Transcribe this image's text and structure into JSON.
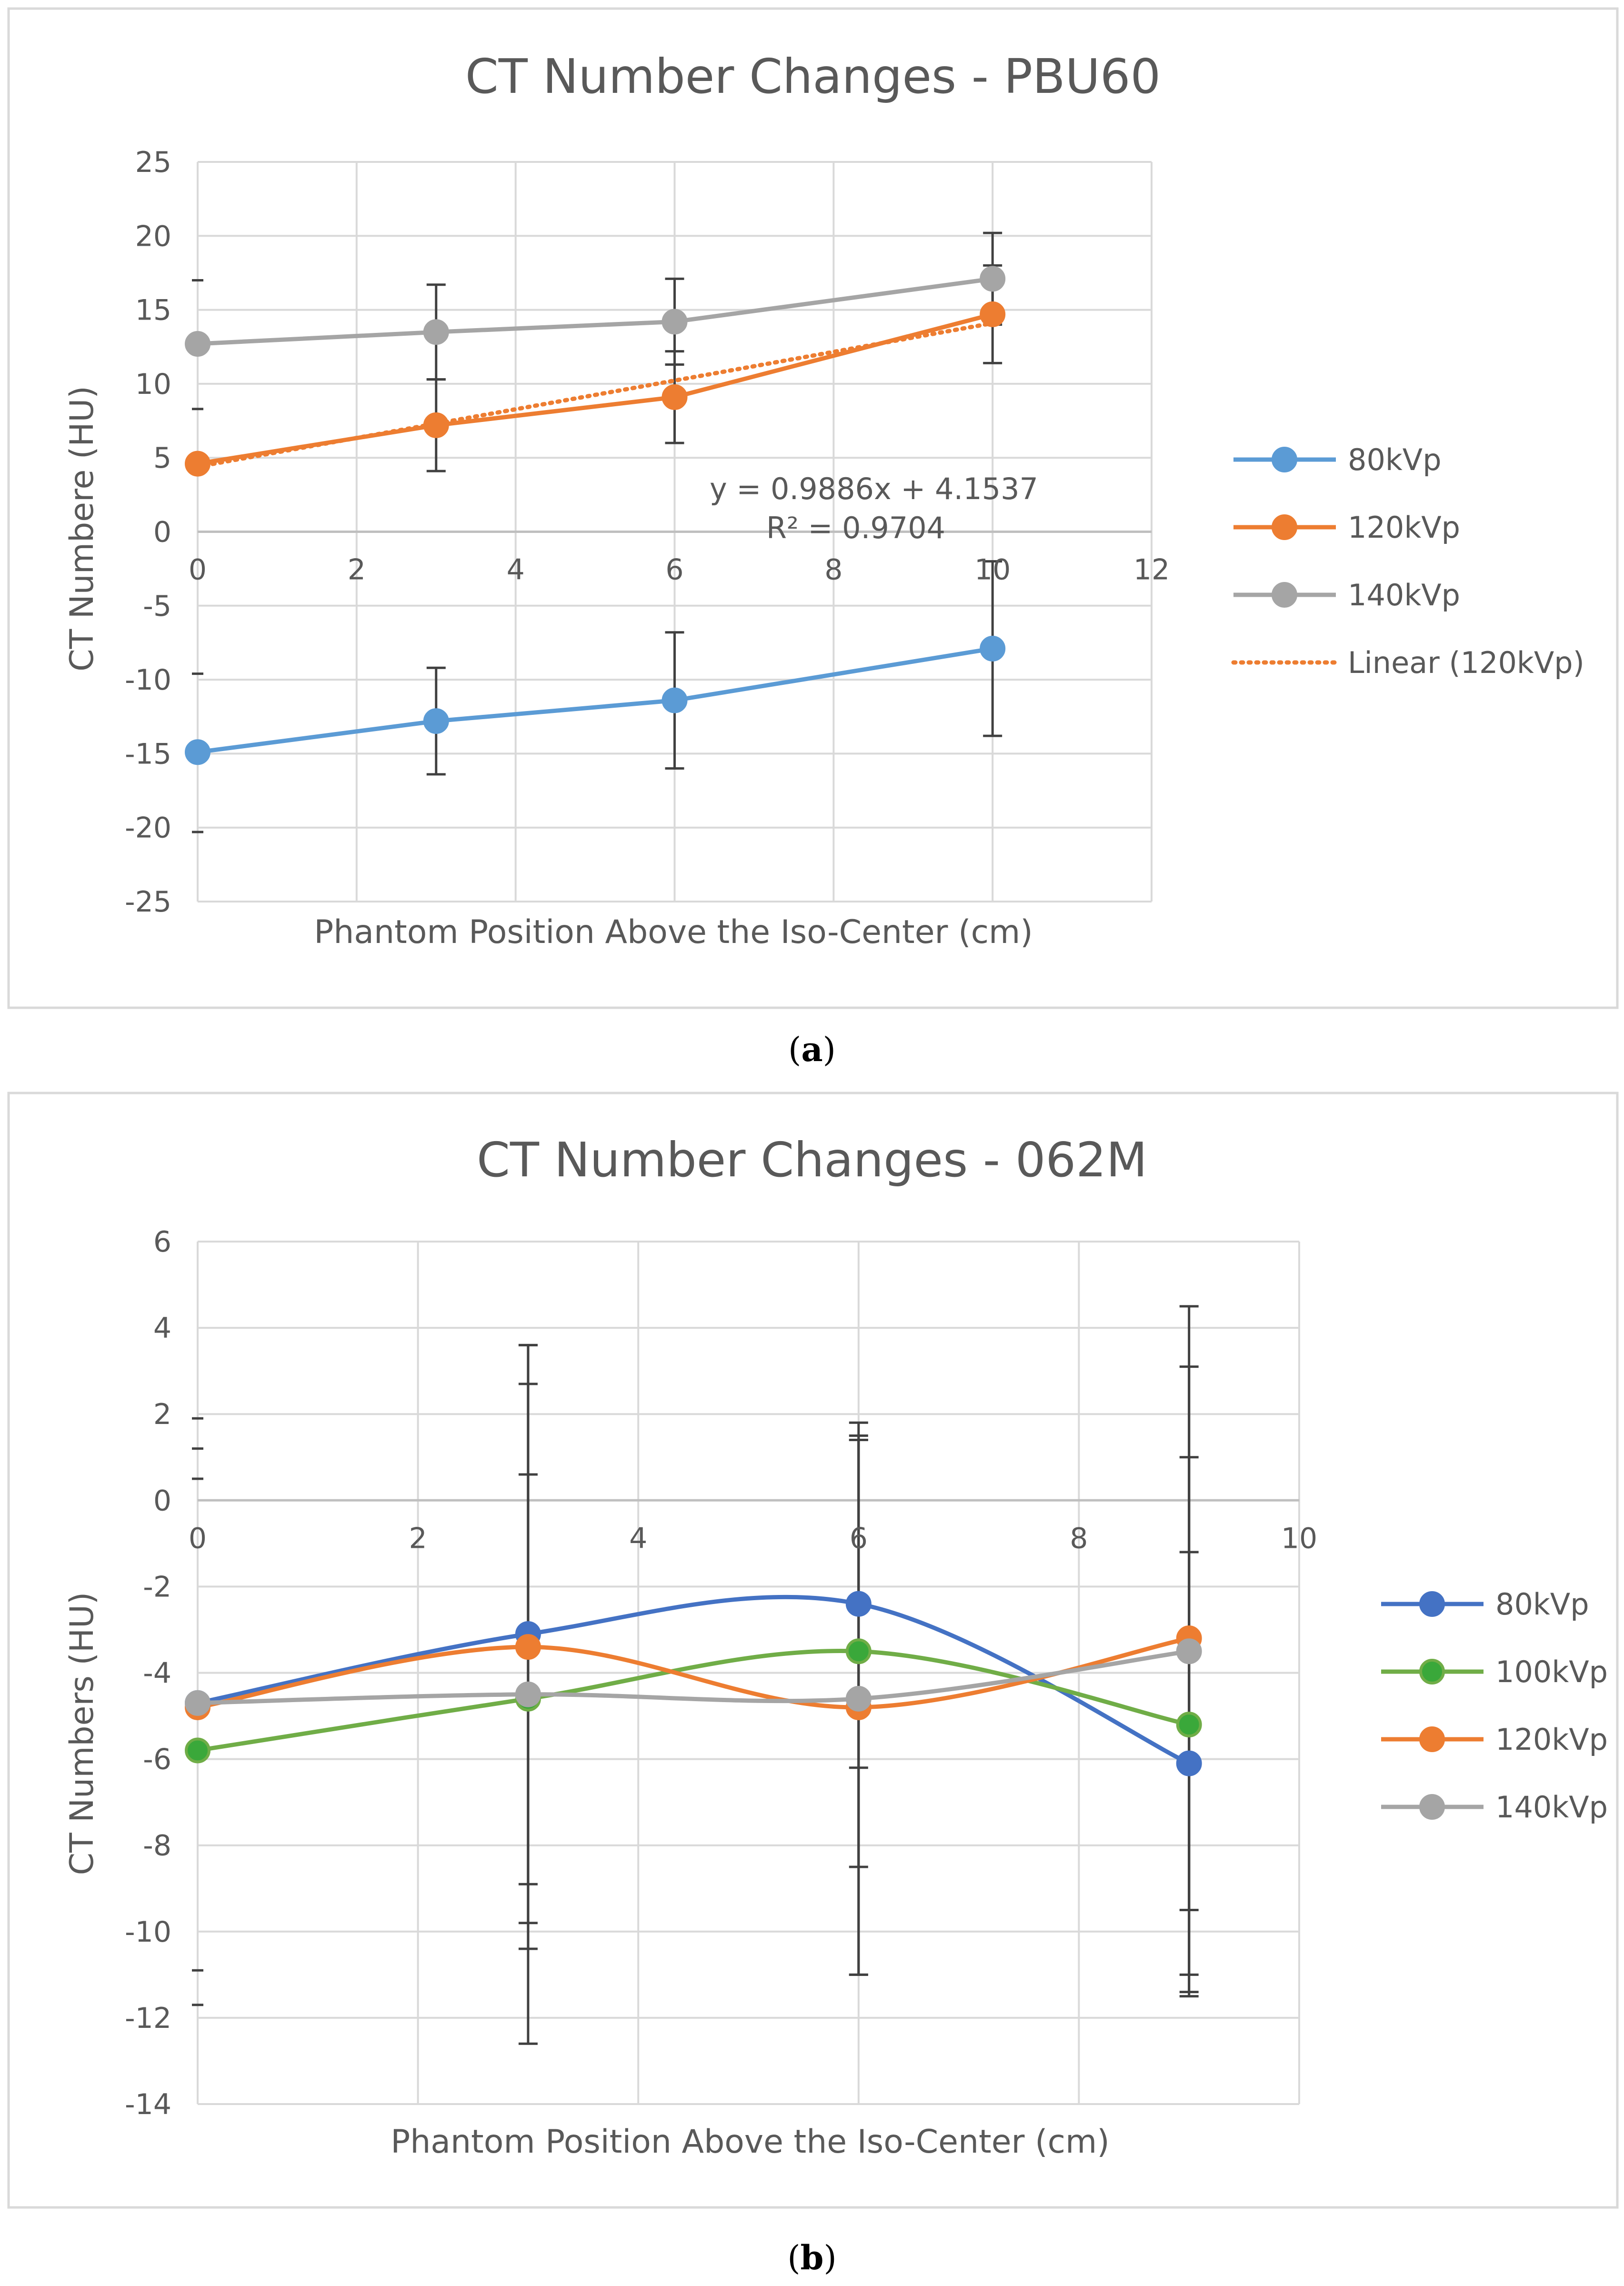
{
  "chart_data": [
    {
      "type": "line",
      "panel_label": "a",
      "title": "CT Number Changes - PBU60",
      "xlabel": "Phantom Position Above the Iso-Center (cm)",
      "ylabel": "CT Numbere (HU)",
      "xlim": [
        0,
        12
      ],
      "ylim": [
        -25,
        25
      ],
      "xticks": [
        0,
        2,
        4,
        6,
        8,
        10,
        12
      ],
      "yticks": [
        25,
        20,
        15,
        10,
        5,
        0,
        -5,
        -10,
        -15,
        -20,
        -25
      ],
      "grid": true,
      "smooth": false,
      "legend_position": "right",
      "series": [
        {
          "name": "80kVp",
          "color": "#5b9bd5",
          "marker_fill": "#5b9bd5",
          "x": [
            0,
            3,
            6,
            10
          ],
          "y": [
            -14.9,
            -12.8,
            -11.4,
            -7.9
          ],
          "err": [
            0,
            3.6,
            4.6,
            5.9
          ]
        },
        {
          "name": "120kVp",
          "color": "#ed7d31",
          "marker_fill": "#ed7d31",
          "x": [
            0,
            3,
            6,
            10
          ],
          "y": [
            4.6,
            7.2,
            9.1,
            14.7
          ],
          "err": [
            0,
            3.1,
            3.1,
            3.3
          ]
        },
        {
          "name": "140kVp",
          "color": "#a5a5a5",
          "marker_fill": "#a5a5a5",
          "x": [
            0,
            3,
            6,
            10
          ],
          "y": [
            12.7,
            13.5,
            14.2,
            17.1
          ],
          "err": [
            0,
            3.2,
            2.9,
            3.1
          ]
        }
      ],
      "trendline": {
        "name": "Linear (120kVp)",
        "color": "#ed7d31",
        "x_range": [
          0,
          10
        ],
        "y_range": [
          4.4,
          14.1
        ]
      },
      "annotation": {
        "equation": "y = 0.9886x + 4.1537",
        "r_squared": "R² = 0.9704"
      },
      "extra_error_caps": [
        {
          "x": 0,
          "y": [
            17.0,
            8.3,
            -9.6,
            -20.3
          ]
        }
      ]
    },
    {
      "type": "line",
      "panel_label": "b",
      "title": "CT Number Changes - 062M",
      "xlabel": "Phantom Position Above the Iso-Center (cm)",
      "ylabel": "CT Numbers (HU)",
      "xlim": [
        0,
        10
      ],
      "ylim": [
        -14,
        6
      ],
      "xticks": [
        0,
        2,
        4,
        6,
        8,
        10
      ],
      "yticks": [
        6,
        4,
        2,
        0,
        -2,
        -4,
        -6,
        -8,
        -10,
        -12,
        -14
      ],
      "grid": true,
      "smooth": true,
      "legend_position": "right",
      "series": [
        {
          "name": "80kVp",
          "color": "#4472c4",
          "marker_fill": "#4472c4",
          "x": [
            0,
            3,
            6,
            9
          ],
          "y": [
            -4.7,
            -3.1,
            -2.4,
            -6.1
          ],
          "err": [
            0,
            5.8,
            3.8,
            4.9
          ]
        },
        {
          "name": "100kVp",
          "color": "#70ad47",
          "marker_fill": "#3aa83a",
          "x": [
            0,
            3,
            6,
            9
          ],
          "y": [
            -5.8,
            -4.6,
            -3.5,
            -5.2
          ],
          "err": [
            0,
            5.2,
            5.0,
            6.2
          ]
        },
        {
          "name": "120kVp",
          "color": "#ed7d31",
          "marker_fill": "#ed7d31",
          "x": [
            0,
            3,
            6,
            9
          ],
          "y": [
            -4.8,
            -3.4,
            -4.8,
            -3.2
          ],
          "err": [
            0,
            7.0,
            6.2,
            6.3
          ]
        },
        {
          "name": "140kVp",
          "color": "#a5a5a5",
          "marker_fill": "#a5a5a5",
          "x": [
            0,
            3,
            6,
            9
          ],
          "y": [
            -4.7,
            -4.5,
            -4.6,
            -3.5
          ],
          "err": [
            0,
            8.1,
            6.4,
            8.0
          ]
        }
      ],
      "extra_error_caps": [
        {
          "x": 0,
          "y": [
            1.9,
            1.2,
            0.5,
            -10.9,
            -11.7
          ]
        }
      ]
    }
  ],
  "captions": [
    "a",
    "b"
  ]
}
